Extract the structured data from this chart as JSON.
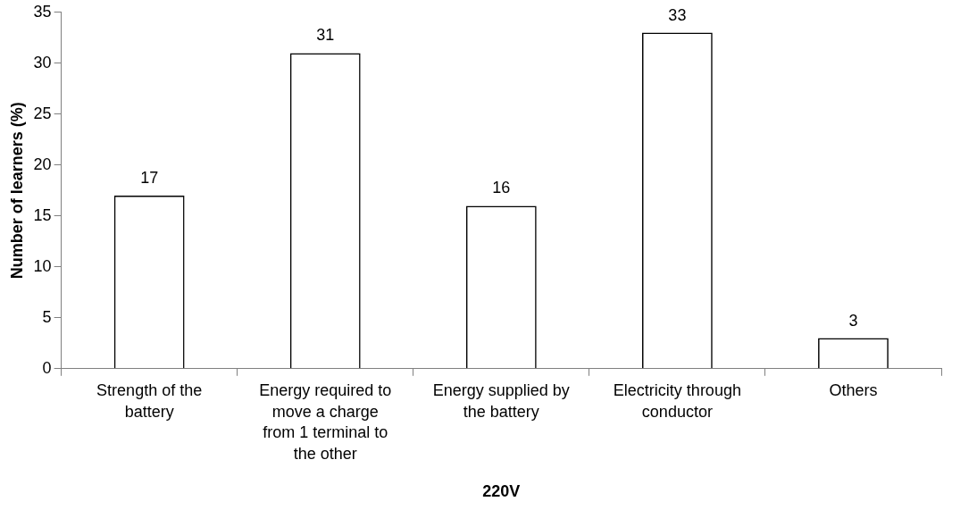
{
  "chart_data": {
    "type": "bar",
    "xlabel": "220V",
    "ylabel": "Number of learners (%)",
    "categories": [
      "Strength of the battery",
      "Energy required to move a charge from 1 terminal to the other",
      "Energy supplied by the battery",
      "Electricity through conductor",
      "Others"
    ],
    "values": [
      17,
      31,
      16,
      33,
      3
    ],
    "color": "#000000",
    "ylim": [
      0,
      35
    ],
    "yticks": [
      0,
      5,
      10,
      15,
      20,
      25,
      30,
      35
    ],
    "grid": false,
    "legend": false,
    "data_labels": true
  }
}
